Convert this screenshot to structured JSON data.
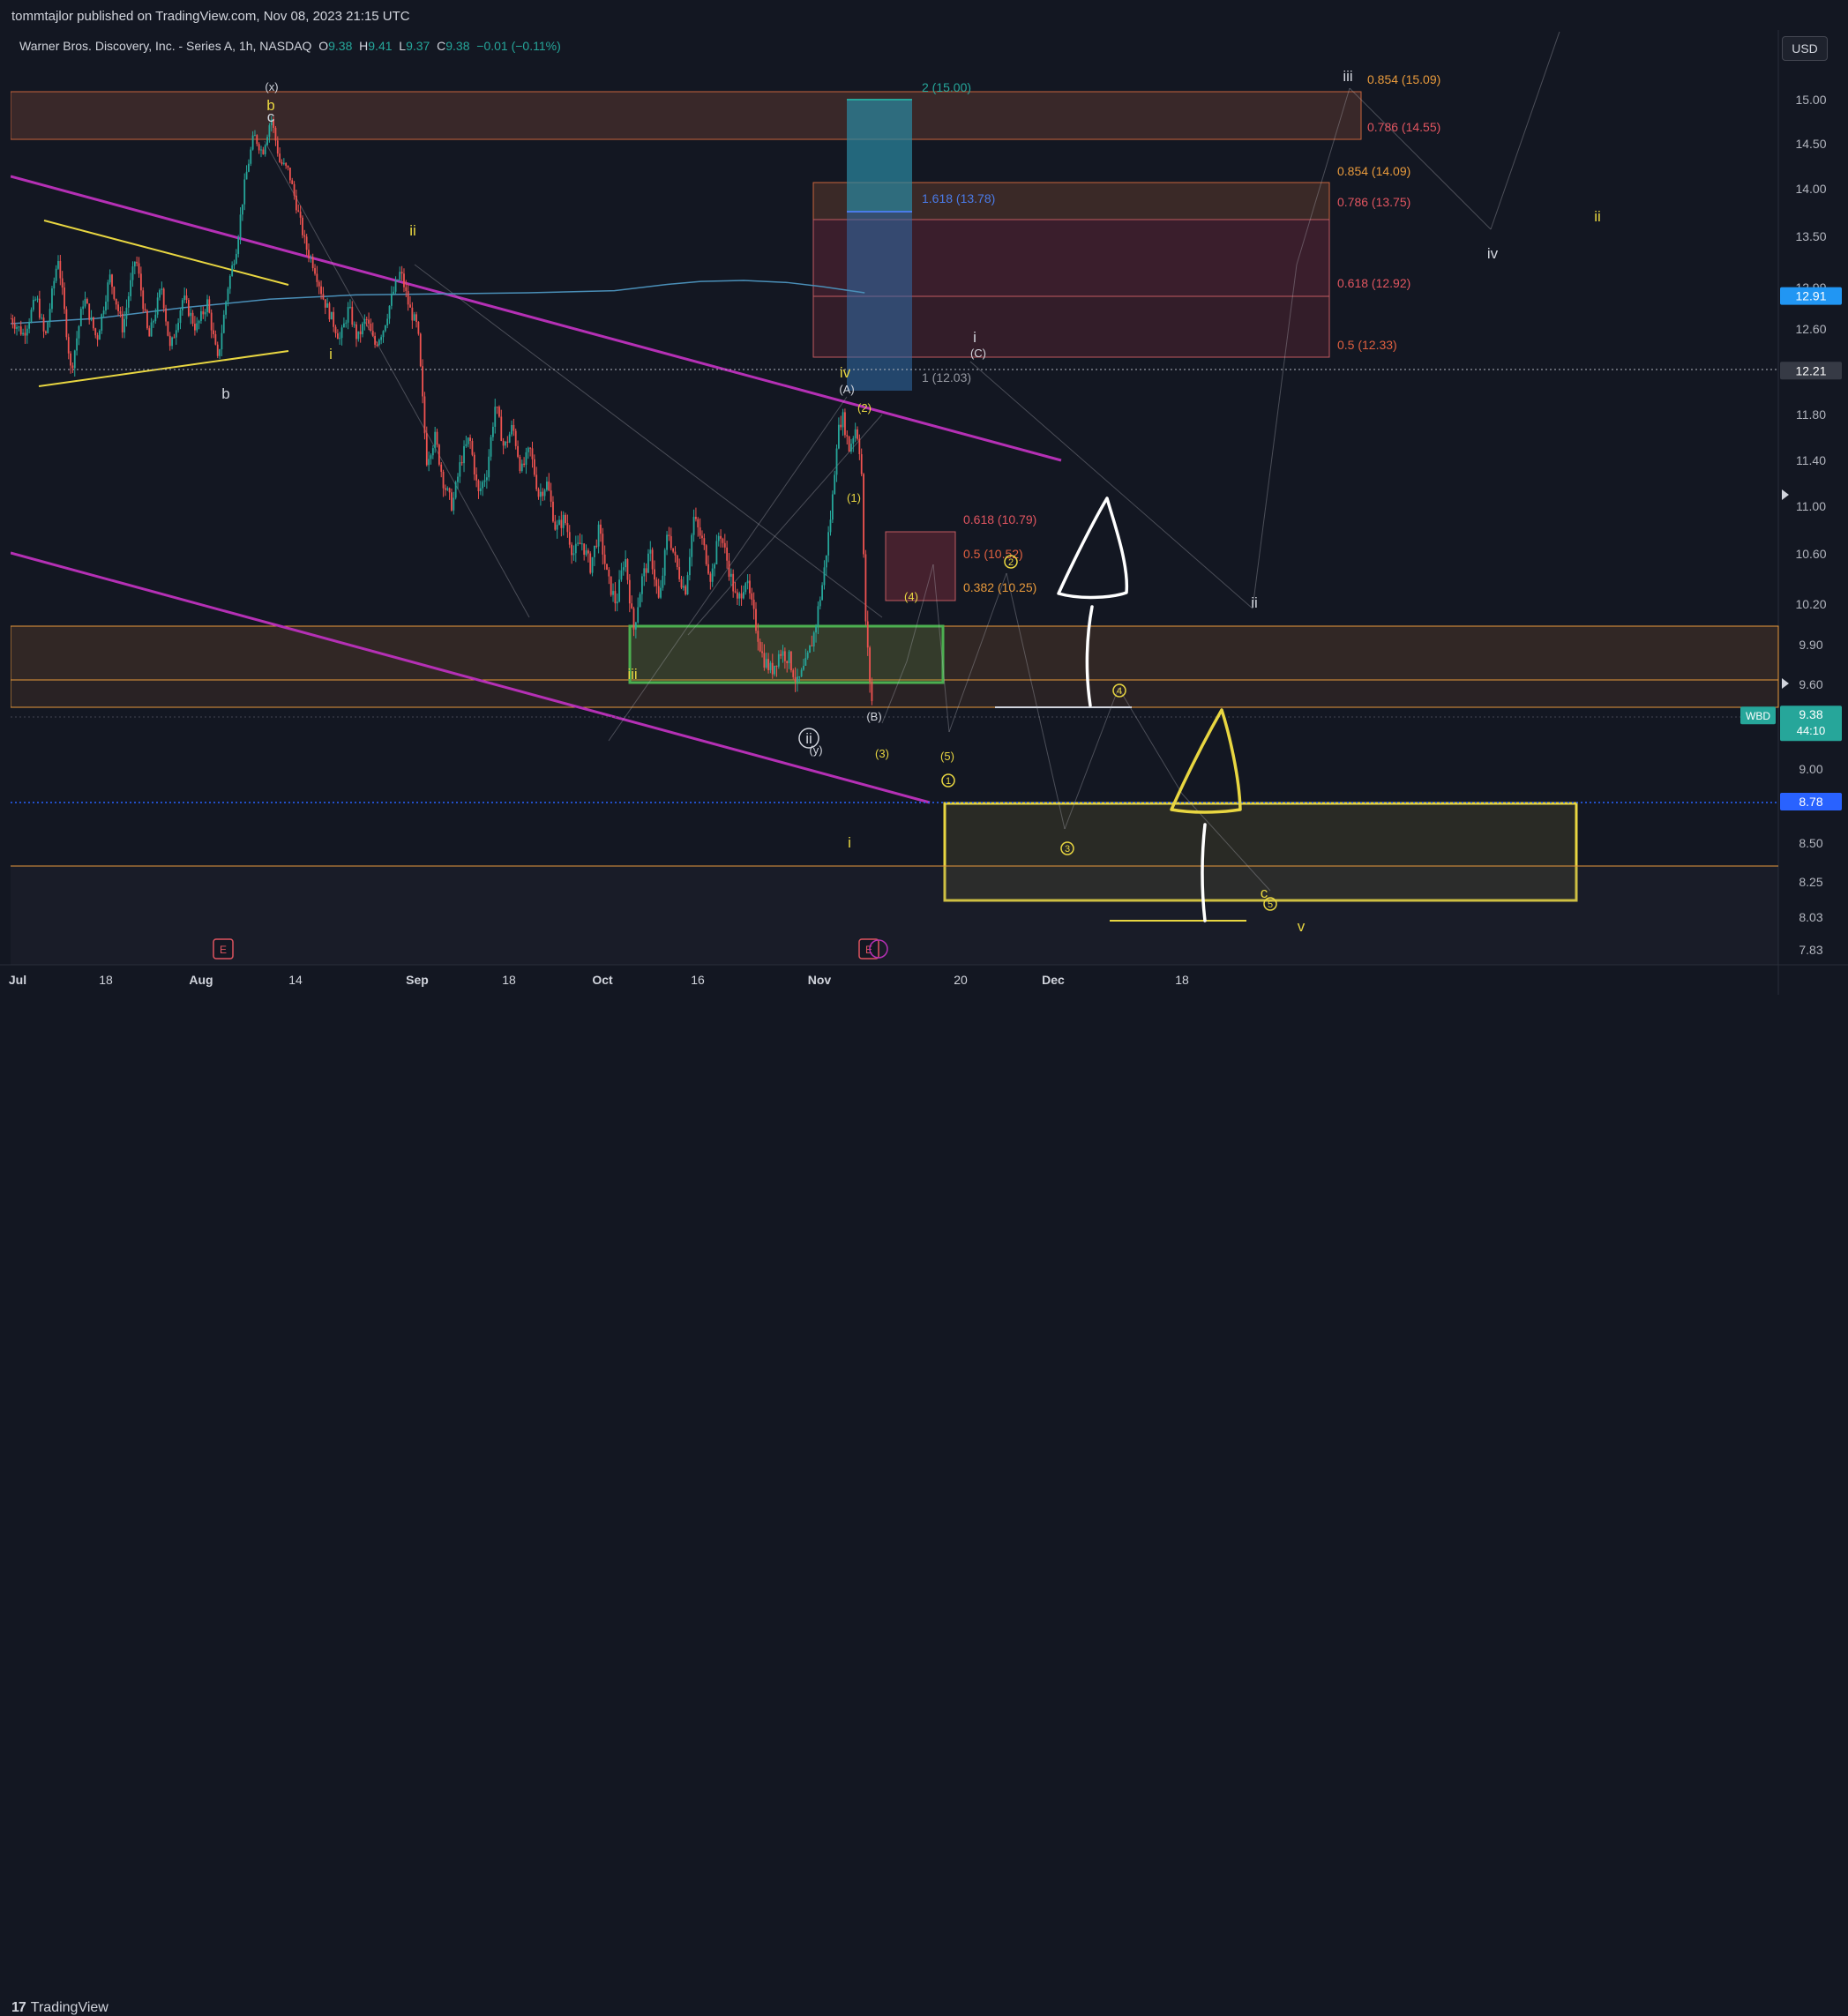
{
  "header": {
    "publisher": "tommtajlor published on TradingView.com, Nov 08, 2023 21:15 UTC"
  },
  "legend": {
    "symbol": "Warner Bros. Discovery, Inc. - Series A, 1h, NASDAQ",
    "o_label": "O",
    "o": "9.38",
    "h_label": "H",
    "h": "9.41",
    "l_label": "L",
    "l": "9.37",
    "c_label": "C",
    "c": "9.38",
    "change": "−0.01 (−0.11%)"
  },
  "currency_button": "USD",
  "footer": {
    "brand_mark": "17",
    "brand": "TradingView"
  },
  "colors": {
    "background": "#131722",
    "up": "#26a69a",
    "down": "#ef5350",
    "channel": "#b530b5",
    "triangle": "#e8d641",
    "annotation_yellow": "#e8d641",
    "fib_orange": "#e89a3c",
    "fib_red": "#e05560",
    "ma": "#4a8fb8",
    "price_tag": "#26a69a"
  },
  "chart_data": {
    "type": "candlestick",
    "symbol": "WBD",
    "interval": "1h",
    "y_axis": {
      "ticks": [
        "15.00",
        "14.50",
        "14.00",
        "13.50",
        "12.99",
        "12.60",
        "11.80",
        "11.40",
        "11.00",
        "10.60",
        "10.20",
        "9.90",
        "9.60",
        "9.00",
        "8.50",
        "8.25",
        "8.03",
        "7.83"
      ],
      "tick_values": [
        15.0,
        14.5,
        14.0,
        13.5,
        12.99,
        12.6,
        11.8,
        11.4,
        11.0,
        10.6,
        10.2,
        9.9,
        9.6,
        9.0,
        8.5,
        8.25,
        8.03,
        7.83
      ]
    },
    "x_axis": {
      "ticks": [
        "Jul",
        "18",
        "Aug",
        "14",
        "Sep",
        "18",
        "Oct",
        "16",
        "Nov",
        "20",
        "Dec",
        "18"
      ],
      "bold_ticks": [
        "Jul",
        "Aug",
        "Sep",
        "Oct",
        "Nov",
        "Dec"
      ]
    },
    "price_labels": [
      {
        "text": "12.91",
        "value": 12.91,
        "color": "#2196f3"
      },
      {
        "text": "12.21",
        "value": 12.21,
        "color": "#363a45"
      },
      {
        "text": "8.78",
        "value": 8.78,
        "color": "#2962ff"
      }
    ],
    "last_price": {
      "symbol": "WBD",
      "price": "9.38",
      "countdown": "44:10",
      "value": 9.38
    },
    "price_path": [
      [
        0,
        12.7
      ],
      [
        15,
        12.55
      ],
      [
        30,
        12.9
      ],
      [
        40,
        12.5
      ],
      [
        55,
        13.3
      ],
      [
        70,
        12.2
      ],
      [
        85,
        12.9
      ],
      [
        100,
        12.5
      ],
      [
        115,
        13.1
      ],
      [
        130,
        12.6
      ],
      [
        145,
        13.3
      ],
      [
        160,
        12.5
      ],
      [
        175,
        13.0
      ],
      [
        185,
        12.4
      ],
      [
        200,
        12.9
      ],
      [
        215,
        12.6
      ],
      [
        228,
        12.85
      ],
      [
        240,
        12.3
      ],
      [
        252,
        13.0
      ],
      [
        262,
        13.4
      ],
      [
        272,
        14.1
      ],
      [
        282,
        14.6
      ],
      [
        292,
        14.4
      ],
      [
        302,
        14.8
      ],
      [
        312,
        14.3
      ],
      [
        322,
        14.2
      ],
      [
        332,
        13.8
      ],
      [
        342,
        13.4
      ],
      [
        352,
        13.2
      ],
      [
        362,
        12.9
      ],
      [
        372,
        12.7
      ],
      [
        382,
        12.5
      ],
      [
        392,
        12.8
      ],
      [
        402,
        12.5
      ],
      [
        412,
        12.7
      ],
      [
        422,
        12.45
      ],
      [
        432,
        12.6
      ],
      [
        442,
        12.9
      ],
      [
        452,
        13.15
      ],
      [
        462,
        12.8
      ],
      [
        472,
        12.6
      ],
      [
        482,
        11.4
      ],
      [
        492,
        11.6
      ],
      [
        502,
        11.2
      ],
      [
        512,
        11.0
      ],
      [
        522,
        11.4
      ],
      [
        532,
        11.6
      ],
      [
        542,
        11.1
      ],
      [
        552,
        11.3
      ],
      [
        562,
        11.9
      ],
      [
        572,
        11.5
      ],
      [
        582,
        11.7
      ],
      [
        592,
        11.3
      ],
      [
        602,
        11.5
      ],
      [
        612,
        11.1
      ],
      [
        622,
        11.2
      ],
      [
        632,
        10.8
      ],
      [
        642,
        10.9
      ],
      [
        652,
        10.6
      ],
      [
        662,
        10.7
      ],
      [
        672,
        10.5
      ],
      [
        682,
        10.8
      ],
      [
        692,
        10.4
      ],
      [
        702,
        10.2
      ],
      [
        712,
        10.6
      ],
      [
        722,
        10.0
      ],
      [
        732,
        10.4
      ],
      [
        742,
        10.6
      ],
      [
        752,
        10.2
      ],
      [
        762,
        10.8
      ],
      [
        772,
        10.5
      ],
      [
        782,
        10.3
      ],
      [
        792,
        10.9
      ],
      [
        802,
        10.7
      ],
      [
        812,
        10.4
      ],
      [
        822,
        10.8
      ],
      [
        832,
        10.5
      ],
      [
        842,
        10.2
      ],
      [
        852,
        10.4
      ],
      [
        862,
        10.1
      ],
      [
        872,
        9.8
      ],
      [
        882,
        9.7
      ],
      [
        892,
        9.85
      ],
      [
        902,
        9.8
      ],
      [
        912,
        9.6
      ],
      [
        922,
        9.75
      ],
      [
        932,
        10.0
      ],
      [
        942,
        10.4
      ],
      [
        952,
        11.0
      ],
      [
        958,
        11.6
      ],
      [
        964,
        11.8
      ],
      [
        972,
        11.5
      ],
      [
        980,
        11.7
      ],
      [
        986,
        11.4
      ],
      [
        990,
        10.2
      ],
      [
        995,
        9.7
      ],
      [
        1000,
        9.38
      ]
    ],
    "moving_average": [
      [
        0,
        12.65
      ],
      [
        100,
        12.7
      ],
      [
        200,
        12.8
      ],
      [
        300,
        12.88
      ],
      [
        400,
        12.92
      ],
      [
        500,
        12.93
      ],
      [
        600,
        12.94
      ],
      [
        700,
        12.96
      ],
      [
        760,
        13.02
      ],
      [
        800,
        13.05
      ],
      [
        850,
        13.06
      ],
      [
        900,
        13.04
      ],
      [
        940,
        13.0
      ],
      [
        990,
        12.94
      ]
    ],
    "fib_levels": [
      {
        "label": "2 (15.00)",
        "value": 15.0,
        "color": "#26a69a"
      },
      {
        "label": "0.854 (15.09)",
        "value": 15.09,
        "color": "#e89a3c"
      },
      {
        "label": "0.786 (14.55)",
        "value": 14.55,
        "color": "#e05560"
      },
      {
        "label": "0.854 (14.09)",
        "value": 14.09,
        "color": "#e89a3c"
      },
      {
        "label": "0.786 (13.75)",
        "value": 13.75,
        "color": "#e05560"
      },
      {
        "label": "1.618 (13.78)",
        "value": 13.78,
        "color": "#4a7be8"
      },
      {
        "label": "0.618 (12.92)",
        "value": 12.92,
        "color": "#e05560"
      },
      {
        "label": "0.5 (12.33)",
        "value": 12.33,
        "color": "#e06040"
      },
      {
        "label": "1 (12.03)",
        "value": 12.03,
        "color": "#9598a1"
      },
      {
        "label": "0.618 (10.79)",
        "value": 10.79,
        "color": "#e05560"
      },
      {
        "label": "0.5 (10.52)",
        "value": 10.52,
        "color": "#e06040"
      },
      {
        "label": "0.382 (10.25)",
        "value": 10.25,
        "color": "#e89a3c"
      }
    ],
    "wave_labels": [
      {
        "text": "(x)",
        "color": "#d1d4dc"
      },
      {
        "text": "b",
        "color": "#e8d641"
      },
      {
        "text": "c",
        "color": "#d1d4dc"
      },
      {
        "text": "ii",
        "color": "#e8d641"
      },
      {
        "text": "i",
        "color": "#e8d641"
      },
      {
        "text": "b",
        "color": "#d1d4dc"
      },
      {
        "text": "iii",
        "color": "#e8d641"
      },
      {
        "text": "ii",
        "color": "#d1d4dc"
      },
      {
        "text": "(y)",
        "color": "#d1d4dc"
      },
      {
        "text": "iv",
        "color": "#e8d641"
      },
      {
        "text": "(A)",
        "color": "#d1d4dc"
      },
      {
        "text": "(2)",
        "color": "#e8d641"
      },
      {
        "text": "(1)",
        "color": "#e8d641"
      },
      {
        "text": "(B)",
        "color": "#d1d4dc"
      },
      {
        "text": "(3)",
        "color": "#e8d641"
      },
      {
        "text": "(4)",
        "color": "#e8d641"
      },
      {
        "text": "(5)",
        "color": "#e8d641"
      },
      {
        "text": "1",
        "color": "#e8d641"
      },
      {
        "text": "i",
        "color": "#e8d641"
      },
      {
        "text": "i",
        "color": "#d1d4dc"
      },
      {
        "text": "(C)",
        "color": "#d1d4dc"
      },
      {
        "text": "2",
        "color": "#e8d641"
      },
      {
        "text": "4",
        "color": "#e8d641"
      },
      {
        "text": "3",
        "color": "#e8d641"
      },
      {
        "text": "5",
        "color": "#e8d641"
      },
      {
        "text": "c",
        "color": "#e8d641"
      },
      {
        "text": "v",
        "color": "#e8d641"
      },
      {
        "text": "ii",
        "color": "#d1d4dc"
      },
      {
        "text": "iii",
        "color": "#d1d4dc"
      },
      {
        "text": "iv",
        "color": "#d1d4dc"
      },
      {
        "text": "ii",
        "color": "#e8d641"
      }
    ],
    "earnings_markers": [
      "E",
      "E"
    ]
  }
}
